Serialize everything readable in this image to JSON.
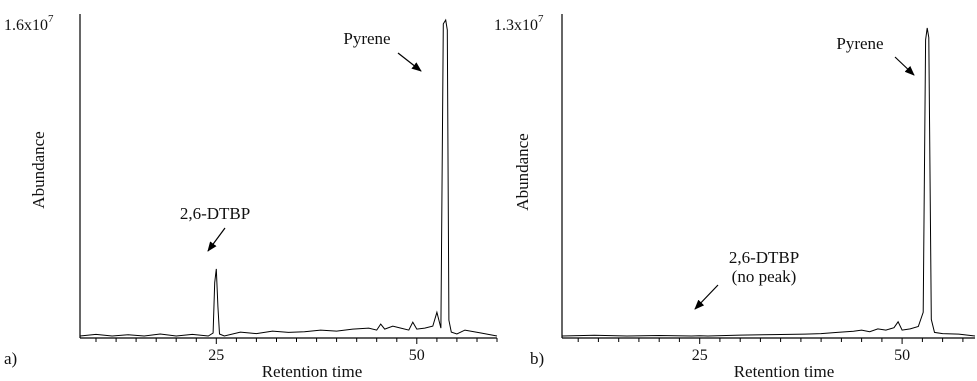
{
  "chart_data": [
    {
      "type": "line",
      "panel_label": "a)",
      "xlabel": "Retention time",
      "ylabel": "Abundance",
      "y_max_label": {
        "mantissa": "1.6x10",
        "exp": "7"
      },
      "x_ticks": [
        "25",
        "50"
      ],
      "x_tick_values": [
        25,
        50
      ],
      "xlim": [
        8,
        60
      ],
      "ylim": [
        0,
        16000000
      ],
      "series": [
        {
          "x": [
            8,
            10,
            12,
            14,
            16,
            18,
            20,
            22,
            24,
            24.6,
            24.8,
            25.0,
            25.2,
            25.4,
            26,
            28,
            30,
            32,
            34,
            36,
            38,
            40,
            42,
            44,
            45,
            45.5,
            46,
            47,
            48,
            49,
            49.5,
            50,
            51,
            52,
            52.5,
            53,
            53.3,
            53.6,
            53.8,
            54.0,
            54.3,
            55,
            56,
            58,
            60
          ],
          "y": [
            0,
            80000,
            0,
            60000,
            0,
            100000,
            0,
            80000,
            0,
            150000,
            2700000,
            3400000,
            1500000,
            100000,
            0,
            200000,
            120000,
            250000,
            180000,
            220000,
            300000,
            250000,
            350000,
            400000,
            300000,
            600000,
            350000,
            500000,
            400000,
            300000,
            700000,
            350000,
            400000,
            500000,
            1200000,
            400000,
            15800000,
            16000000,
            15500000,
            800000,
            200000,
            100000,
            300000,
            150000,
            0
          ]
        }
      ],
      "annotations": [
        {
          "text": "2,6-DTBP",
          "x": 25,
          "y": 3400000
        },
        {
          "text": "Pyrene",
          "x": 53.6,
          "y": 16000000
        }
      ]
    },
    {
      "type": "line",
      "panel_label": "b)",
      "xlabel": "Retention time",
      "ylabel": "Abundance",
      "y_max_label": {
        "mantissa": "1.3x10",
        "exp": "7"
      },
      "x_ticks": [
        "25",
        "50"
      ],
      "x_tick_values": [
        25,
        50
      ],
      "xlim": [
        8,
        59
      ],
      "ylim": [
        0,
        13000000
      ],
      "series": [
        {
          "x": [
            8,
            12,
            16,
            20,
            24,
            25,
            26,
            30,
            34,
            38,
            40,
            42,
            44,
            45,
            46,
            47,
            48,
            49,
            49.5,
            50,
            51,
            52,
            52.6,
            52.9,
            53.1,
            53.3,
            53.6,
            54,
            55,
            57,
            59
          ],
          "y": [
            0,
            30000,
            0,
            20000,
            0,
            10000,
            0,
            40000,
            60000,
            80000,
            100000,
            150000,
            200000,
            250000,
            180000,
            300000,
            250000,
            350000,
            600000,
            250000,
            300000,
            400000,
            1000000,
            12500000,
            13000000,
            12600000,
            700000,
            150000,
            100000,
            80000,
            0
          ]
        }
      ],
      "annotations": [
        {
          "text": "2,6-DTBP",
          "line2": "(no peak)",
          "x": 25,
          "y": 0
        },
        {
          "text": "Pyrene",
          "x": 53.1,
          "y": 13000000
        }
      ]
    }
  ]
}
